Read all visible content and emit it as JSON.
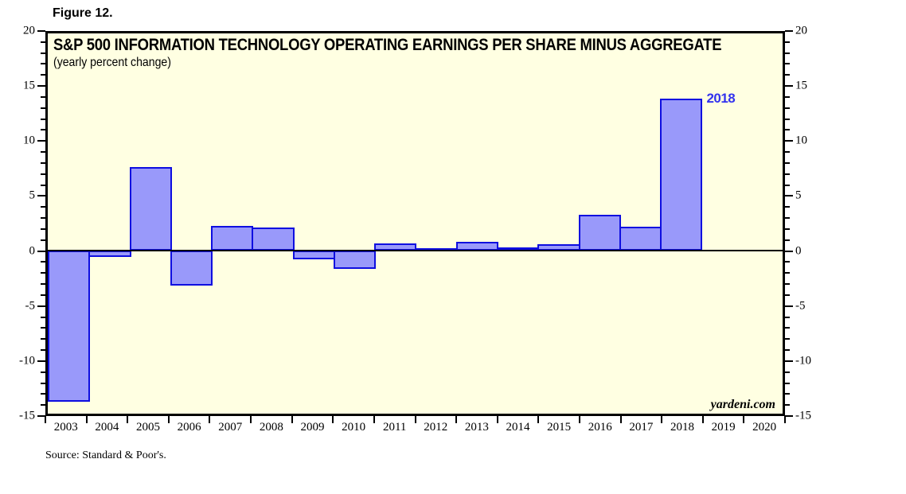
{
  "figure_label": "Figure 12.",
  "source": "Source: Standard & Poor's.",
  "chart_data": {
    "type": "bar",
    "title": "S&P 500 INFORMATION TECHNOLOGY OPERATING EARNINGS PER SHARE MINUS AGGREGATE",
    "subtitle": "(yearly percent change)",
    "categories": [
      "2003",
      "2004",
      "2005",
      "2006",
      "2007",
      "2008",
      "2009",
      "2010",
      "2011",
      "2012",
      "2013",
      "2014",
      "2015",
      "2016",
      "2017",
      "2018",
      "2019",
      "2020"
    ],
    "values": [
      -13.9,
      -0.6,
      7.7,
      -3.2,
      2.3,
      2.1,
      -0.8,
      -1.7,
      0.7,
      0.2,
      0.8,
      0.3,
      0.6,
      3.3,
      2.2,
      14.0,
      null,
      null
    ],
    "xlabel": "",
    "ylabel": "",
    "ylim": [
      -15,
      20
    ],
    "y_major_step": 5,
    "y_minor_step": 1,
    "y_tick_labels": [
      "20",
      "15",
      "10",
      "5",
      "0",
      "-5",
      "-10",
      "-15"
    ],
    "grid": false,
    "legend": null,
    "annotation": {
      "text": "2018",
      "category": "2018"
    },
    "watermark": "yardeni.com",
    "colors": {
      "bar_fill": "#9999FA",
      "bar_border": "#0E0EE0",
      "plot_bg": "#FFFFE2",
      "frame": "#000000",
      "annotation": "#3333EE"
    }
  }
}
